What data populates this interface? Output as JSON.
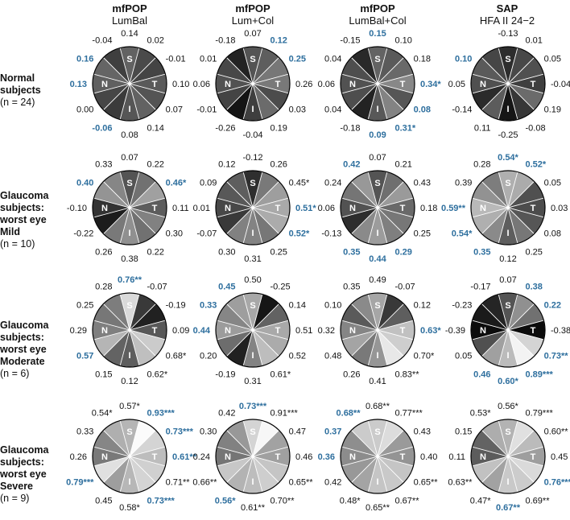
{
  "columns": [
    {
      "method": "mfPOP",
      "sub": "LumBal"
    },
    {
      "method": "mfPOP",
      "sub": "Lum+Col"
    },
    {
      "method": "mfPOP",
      "sub": "LumBal+Col"
    },
    {
      "method": "SAP",
      "sub": "HFA II 24−2"
    }
  ],
  "rows": [
    {
      "lines": [
        "Normal",
        "subjects"
      ],
      "n": "(n = 24)"
    },
    {
      "lines": [
        "Glaucoma",
        "subjects:",
        "worst eye",
        "Mild"
      ],
      "n": "(n = 10)"
    },
    {
      "lines": [
        "Glaucoma",
        "subjects:",
        "worst eye",
        "Moderate"
      ],
      "n": "(n = 6)"
    },
    {
      "lines": [
        "Glaucoma",
        "subjects:",
        "worst eye",
        "Severe"
      ],
      "n": "(n = 9)"
    }
  ],
  "chart_data": {
    "type": "pie",
    "sector_order": "clockwise from top (S) through T, I, N",
    "quadrant_letters": [
      "S",
      "T",
      "I",
      "N"
    ],
    "highlight_color": "#2e6f9e",
    "text_color": "#111111",
    "panels": [
      {
        "row": 0,
        "col": 0,
        "labels": [
          "0.14",
          "0.02",
          "-0.01",
          "0.10",
          "0.07",
          "0.14",
          "0.08",
          "-0.06",
          "0.00",
          "0.13",
          "0.16",
          "-0.04"
        ],
        "highlight": [
          0,
          0,
          0,
          0,
          0,
          0,
          0,
          1,
          0,
          1,
          1,
          0
        ]
      },
      {
        "row": 0,
        "col": 1,
        "labels": [
          "0.07",
          "0.12",
          "0.25",
          "0.26",
          "0.03",
          "0.19",
          "-0.04",
          "-0.26",
          "-0.01",
          "0.06",
          "0.01",
          "-0.18"
        ],
        "highlight": [
          0,
          1,
          1,
          0,
          0,
          0,
          0,
          0,
          0,
          0,
          0,
          0
        ]
      },
      {
        "row": 0,
        "col": 2,
        "labels": [
          "0.15",
          "0.10",
          "0.18",
          "0.34*",
          "0.08",
          "0.31*",
          "0.09",
          "-0.18",
          "0.04",
          "0.06",
          "0.04",
          "-0.15"
        ],
        "highlight": [
          1,
          0,
          0,
          1,
          1,
          1,
          1,
          0,
          0,
          0,
          0,
          0
        ]
      },
      {
        "row": 0,
        "col": 3,
        "labels": [
          "-0.13",
          "0.01",
          "0.05",
          "-0.04",
          "0.19",
          "-0.08",
          "-0.25",
          "0.11",
          "-0.14",
          "0.05",
          "0.10",
          ""
        ],
        "highlight": [
          0,
          0,
          0,
          0,
          0,
          0,
          0,
          0,
          0,
          0,
          1,
          0
        ]
      },
      {
        "row": 1,
        "col": 0,
        "labels": [
          "0.07",
          "0.22",
          "0.46*",
          "0.11",
          "0.30",
          "0.22",
          "0.38",
          "0.26",
          "-0.22",
          "-0.10",
          "0.40",
          "0.33"
        ],
        "highlight": [
          0,
          0,
          1,
          0,
          0,
          0,
          0,
          0,
          0,
          0,
          1,
          0
        ]
      },
      {
        "row": 1,
        "col": 1,
        "labels": [
          "-0.12",
          "0.26",
          "0.45*",
          "0.51*",
          "0.52*",
          "0.25",
          "0.31",
          "0.30",
          "-0.07",
          "0.01",
          "0.09",
          "0.12"
        ],
        "highlight": [
          0,
          0,
          0,
          1,
          1,
          0,
          0,
          0,
          0,
          0,
          0,
          0
        ]
      },
      {
        "row": 1,
        "col": 2,
        "labels": [
          "0.07",
          "0.21",
          "0.43",
          "0.18",
          "0.25",
          "0.29",
          "0.44",
          "0.35",
          "-0.13",
          "0.06",
          "0.24",
          "0.42"
        ],
        "highlight": [
          0,
          0,
          0,
          0,
          0,
          1,
          1,
          1,
          0,
          0,
          0,
          1
        ]
      },
      {
        "row": 1,
        "col": 3,
        "labels": [
          "0.54*",
          "0.52*",
          "0.05",
          "0.03",
          "0.08",
          "0.25",
          "0.12",
          "0.35",
          "0.54*",
          "0.59**",
          "0.39",
          "0.28"
        ],
        "highlight": [
          1,
          1,
          0,
          0,
          0,
          0,
          0,
          1,
          1,
          1,
          0,
          0
        ]
      },
      {
        "row": 2,
        "col": 0,
        "labels": [
          "0.76**",
          "-0.07",
          "-0.19",
          "0.09",
          "0.68*",
          "0.62*",
          "0.12",
          "0.15",
          "0.57",
          "0.29",
          "0.25",
          "0.28"
        ],
        "highlight": [
          1,
          0,
          0,
          0,
          0,
          0,
          0,
          0,
          1,
          0,
          0,
          0
        ]
      },
      {
        "row": 2,
        "col": 1,
        "labels": [
          "0.50",
          "-0.25",
          "0.14",
          "0.51",
          "0.52",
          "0.61*",
          "0.31",
          "-0.19",
          "0.20",
          "0.44",
          "0.33",
          "0.45"
        ],
        "highlight": [
          0,
          0,
          0,
          0,
          0,
          0,
          0,
          0,
          0,
          1,
          1,
          1
        ]
      },
      {
        "row": 2,
        "col": 2,
        "labels": [
          "0.49",
          "-0.07",
          "0.12",
          "0.63*",
          "0.70*",
          "0.83**",
          "0.41",
          "0.26",
          "0.48",
          "0.32",
          "0.10",
          "0.35"
        ],
        "highlight": [
          0,
          0,
          0,
          1,
          0,
          0,
          0,
          0,
          0,
          0,
          0,
          0
        ]
      },
      {
        "row": 2,
        "col": 3,
        "labels": [
          "0.07",
          "0.38",
          "0.22",
          "-0.38",
          "0.73**",
          "0.89***",
          "0.60*",
          "0.46",
          "0.05",
          "-0.39",
          "-0.23",
          "-0.17"
        ],
        "highlight": [
          0,
          1,
          1,
          0,
          1,
          1,
          1,
          1,
          0,
          0,
          0,
          0
        ]
      },
      {
        "row": 3,
        "col": 0,
        "labels": [
          "0.57*",
          "0.93***",
          "0.73***",
          "0.61**",
          "0.71**",
          "0.73***",
          "0.58*",
          "0.45",
          "0.79***",
          "0.26",
          "0.33",
          "0.54*"
        ],
        "highlight": [
          0,
          1,
          1,
          1,
          0,
          1,
          0,
          0,
          1,
          0,
          0,
          0
        ]
      },
      {
        "row": 3,
        "col": 1,
        "labels": [
          "0.73***",
          "0.91***",
          "0.47",
          "0.46",
          "0.65**",
          "0.70**",
          "0.61**",
          "0.56*",
          "0.66**",
          "0.24",
          "0.30",
          "0.42"
        ],
        "highlight": [
          1,
          0,
          0,
          0,
          0,
          0,
          0,
          1,
          0,
          0,
          0,
          0
        ]
      },
      {
        "row": 3,
        "col": 2,
        "labels": [
          "0.68**",
          "0.77***",
          "0.43",
          "0.40",
          "0.65**",
          "0.67**",
          "0.65**",
          "0.48*",
          "0.42",
          "0.36",
          "0.37",
          "0.68**"
        ],
        "highlight": [
          0,
          0,
          0,
          0,
          0,
          0,
          0,
          0,
          0,
          1,
          1,
          1
        ]
      },
      {
        "row": 3,
        "col": 3,
        "labels": [
          "0.56*",
          "0.79***",
          "0.60**",
          "0.45",
          "0.76***",
          "0.69**",
          "0.67**",
          "0.47*",
          "0.63**",
          "0.11",
          "0.15",
          "0.53*"
        ],
        "highlight": [
          0,
          0,
          0,
          0,
          1,
          0,
          1,
          0,
          0,
          0,
          0,
          0
        ]
      }
    ]
  }
}
